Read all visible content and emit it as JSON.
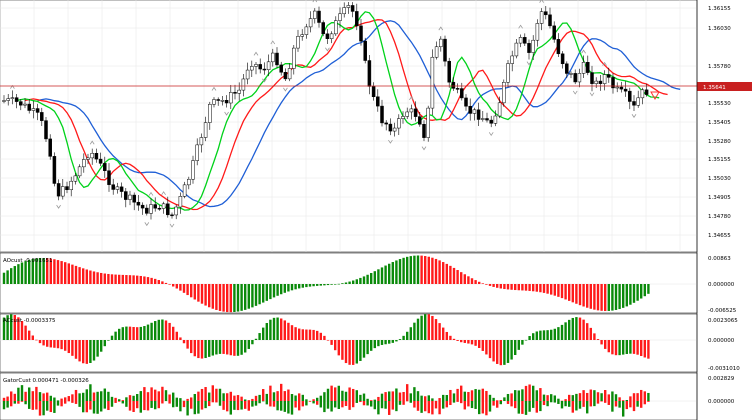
{
  "colors": {
    "grid": "#e6e6e6",
    "border": "#000000",
    "bull_candle": "#ffffff",
    "bear_candle": "#000000",
    "alligator_jaw": "#1f5fd6",
    "alligator_teeth": "#ff1a1a",
    "alligator_lips": "#00d21a",
    "histogram_up": "#0a8a0a",
    "histogram_down": "#ff1a1a",
    "price_line": "#c82020",
    "price_tag_bg": "#c82020",
    "price_tag_text": "#ffffff",
    "fractal_arrow": "#9a9a9a",
    "signal_arrow": "#ff3333"
  },
  "price_pane": {
    "current_price": "1.35641",
    "y_labels": [
      "1.36155",
      "1.36030",
      "1.35780",
      "1.35530",
      "1.35405",
      "1.35280",
      "1.35155",
      "1.35030",
      "1.34905",
      "1.34780",
      "1.34655"
    ]
  },
  "panes": [
    {
      "title": "AOcust -0.001651",
      "top_label": "0.00863",
      "mid_label": "0.000000",
      "bottom_label": "-0.006525"
    },
    {
      "title": "ACcust -0.0003375",
      "top_label": "0.0023065",
      "mid_label": "0.000000",
      "bottom_label": "-0.0031010"
    },
    {
      "title": "GatorCust 0.000471 -0.000326",
      "top_label": "0.002829",
      "mid_label": "0.000000",
      "bottom_label": ""
    }
  ]
}
